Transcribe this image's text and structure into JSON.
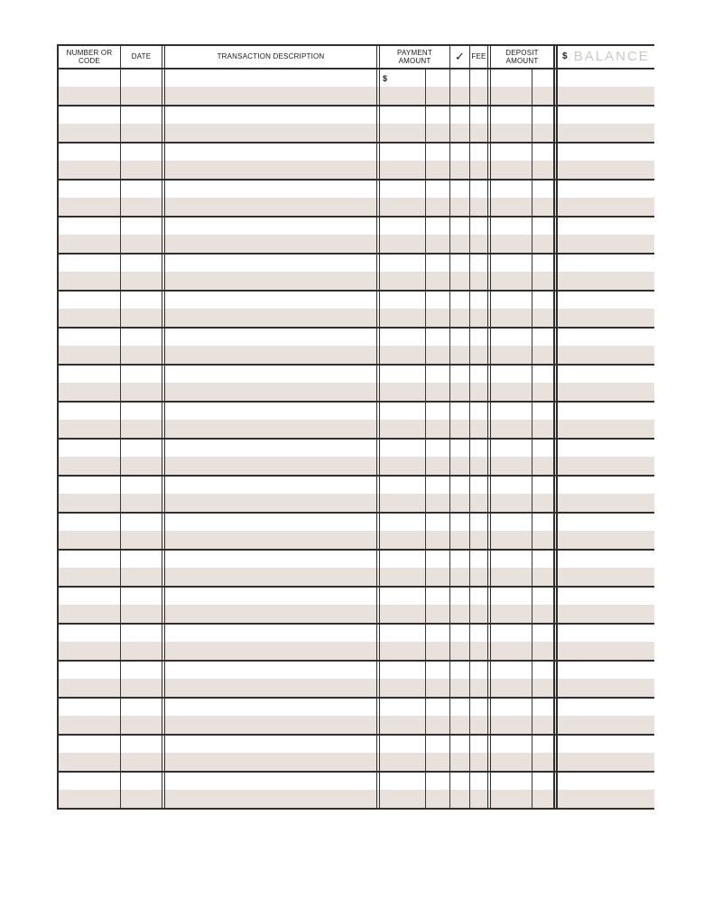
{
  "colors": {
    "stripe": "#e8e1dc",
    "grid_line": "#2f2f2f",
    "thin_line": "#3a3a3a",
    "balance_label": "#cfc8c3",
    "header_text": "#1a1a1a"
  },
  "register": {
    "headers": {
      "number_or_code": "NUMBER OR CODE",
      "date": "DATE",
      "description": "TRANSACTION DESCRIPTION",
      "payment_amount": "PAYMENT AMOUNT",
      "check_mark": "✓",
      "fee": "FEE",
      "deposit_amount": "DEPOSIT AMOUNT",
      "balance_currency": "$",
      "balance": "BALANCE"
    },
    "body": {
      "row_count": 20,
      "first_row_payment_currency": "$"
    }
  }
}
